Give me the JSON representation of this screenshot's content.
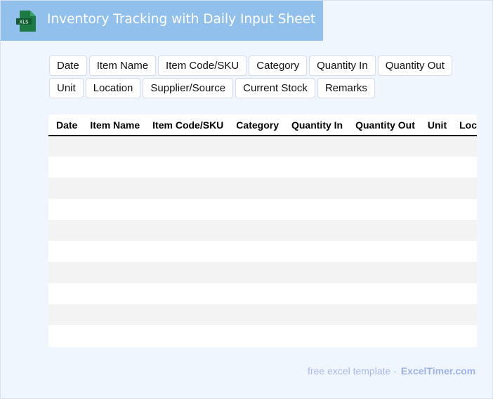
{
  "header": {
    "title": "Inventory Tracking with Daily Input Sheet",
    "logo_text": "XLS",
    "logo_color": "#1d7a45"
  },
  "tags": [
    "Date",
    "Item Name",
    "Item Code/SKU",
    "Category",
    "Quantity In",
    "Quantity Out",
    "Unit",
    "Location",
    "Supplier/Source",
    "Current Stock",
    "Remarks"
  ],
  "table": {
    "columns": [
      "Date",
      "Item Name",
      "Item Code/SKU",
      "Category",
      "Quantity In",
      "Quantity Out",
      "Unit",
      "Location"
    ],
    "row_count": 10
  },
  "footer": {
    "text": "free excel template -",
    "link": "ExcelTimer.com"
  }
}
